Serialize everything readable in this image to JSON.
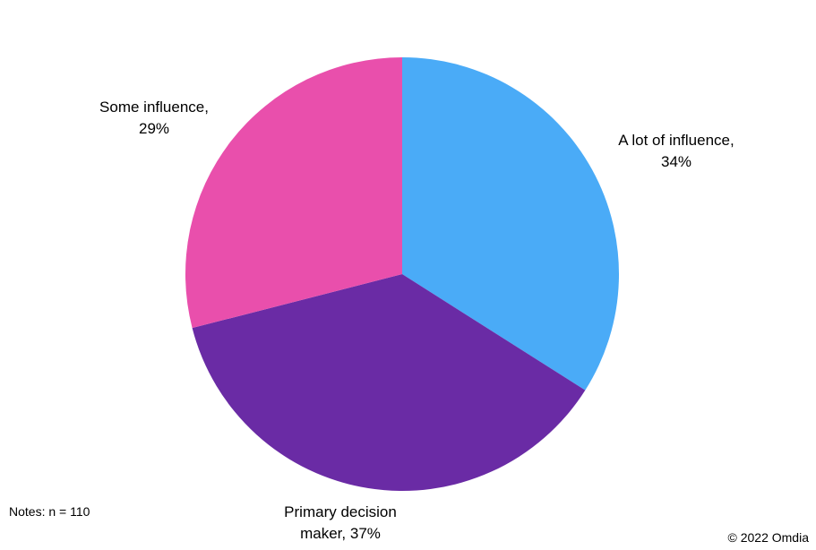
{
  "chart_data": {
    "type": "pie",
    "categories": [
      "A lot of influence,",
      "Primary decision maker,",
      "Some influence,"
    ],
    "values": [
      34,
      37,
      29
    ],
    "value_labels": [
      "34%",
      "37%",
      "29%"
    ],
    "colors": [
      "#4aabf7",
      "#6a2ba5",
      "#e94fac"
    ],
    "notes": "Notes: n = 110",
    "source": "© 2022 Omdia"
  }
}
